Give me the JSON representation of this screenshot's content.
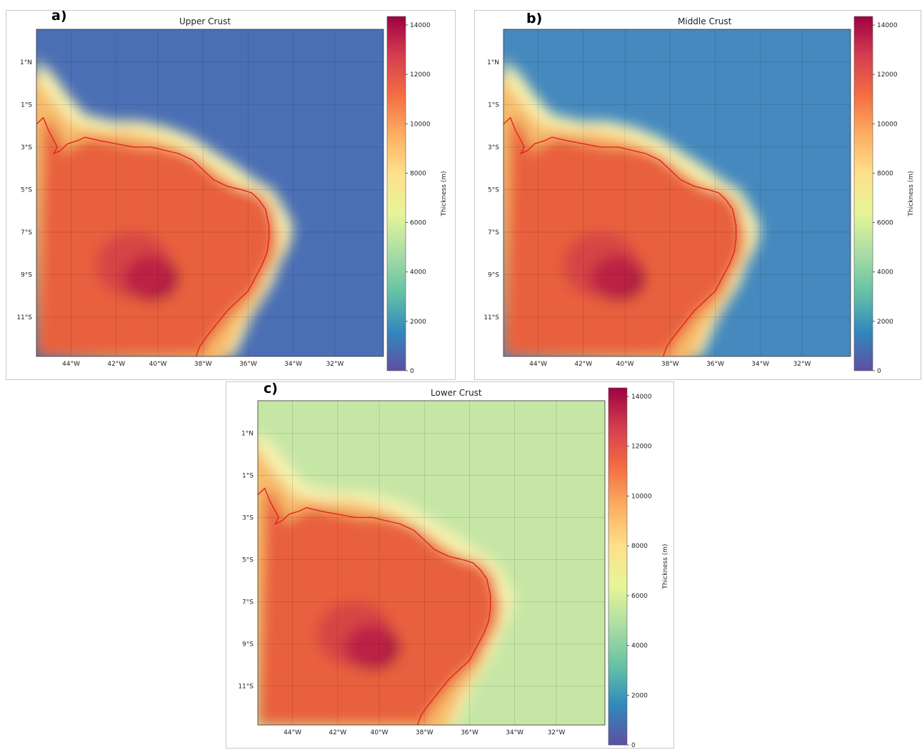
{
  "colorbar": {
    "label": "Thickness (m)",
    "ticks": [
      "14000",
      "12000",
      "10000",
      "8000",
      "6000",
      "4000",
      "2000",
      "0"
    ],
    "stops": [
      "#5e4fa2",
      "#3288bd",
      "#66c2a5",
      "#abdda4",
      "#e6f598",
      "#fee08b",
      "#fdae61",
      "#f46d43",
      "#d53e4f",
      "#9e0142"
    ]
  },
  "axes": {
    "lat_ticks": [
      "1°N",
      "1°S",
      "3°S",
      "5°S",
      "7°S",
      "9°S",
      "11°S"
    ],
    "lon_ticks": [
      "44°W",
      "42°W",
      "40°W",
      "38°W",
      "36°W",
      "34°W",
      "32°W"
    ]
  },
  "panels": [
    {
      "letter": "a)",
      "title": "Upper Crust",
      "land": "#e8613e",
      "land_edge": "#f7bb6a",
      "halo": "#f8f3b0",
      "ocean": "#4a6fb4",
      "core": "#a8133f"
    },
    {
      "letter": "b)",
      "title": "Middle Crust",
      "land": "#e8613e",
      "land_edge": "#f7bb6a",
      "halo": "#f8f3b0",
      "ocean": "#4589be",
      "core": "#a8133f"
    },
    {
      "letter": "c)",
      "title": "Lower Crust",
      "land": "#e8613e",
      "land_edge": "#f7bb6a",
      "halo": "#f8f3b0",
      "ocean": "#c6e6a6",
      "core": "#a8133f"
    }
  ]
}
